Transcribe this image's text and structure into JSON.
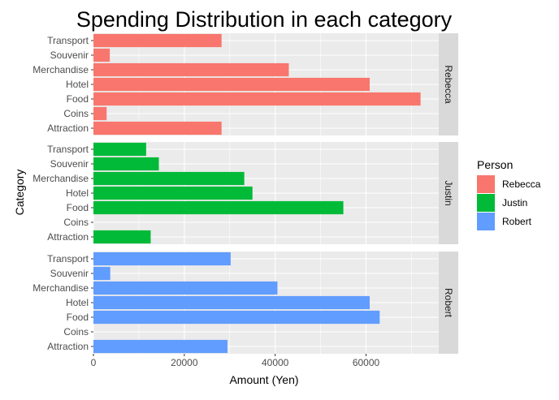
{
  "chart_data": {
    "type": "bar",
    "orientation": "horizontal",
    "title": "Spending Distribution in each category",
    "xlabel": "Amount (Yen)",
    "ylabel": "Category",
    "xlim": [
      0,
      76000
    ],
    "x_ticks": [
      0,
      20000,
      40000,
      60000
    ],
    "x_tick_labels": [
      "0",
      "20000",
      "40000",
      "60000"
    ],
    "grid": true,
    "legend_title": "Person",
    "legend_position": "right",
    "categories": [
      "Attraction",
      "Coins",
      "Food",
      "Hotel",
      "Merchandise",
      "Souvenir",
      "Transport"
    ],
    "series": [
      {
        "name": "Rebecca",
        "color": "#F8766D",
        "values": [
          28200,
          2900,
          72000,
          60800,
          43000,
          3600,
          28200
        ]
      },
      {
        "name": "Justin",
        "color": "#00BA38",
        "values": [
          12600,
          0,
          55000,
          35000,
          33200,
          14400,
          11600
        ]
      },
      {
        "name": "Robert",
        "color": "#619CFF",
        "values": [
          29500,
          0,
          63000,
          60800,
          40500,
          3700,
          30200
        ]
      }
    ]
  }
}
